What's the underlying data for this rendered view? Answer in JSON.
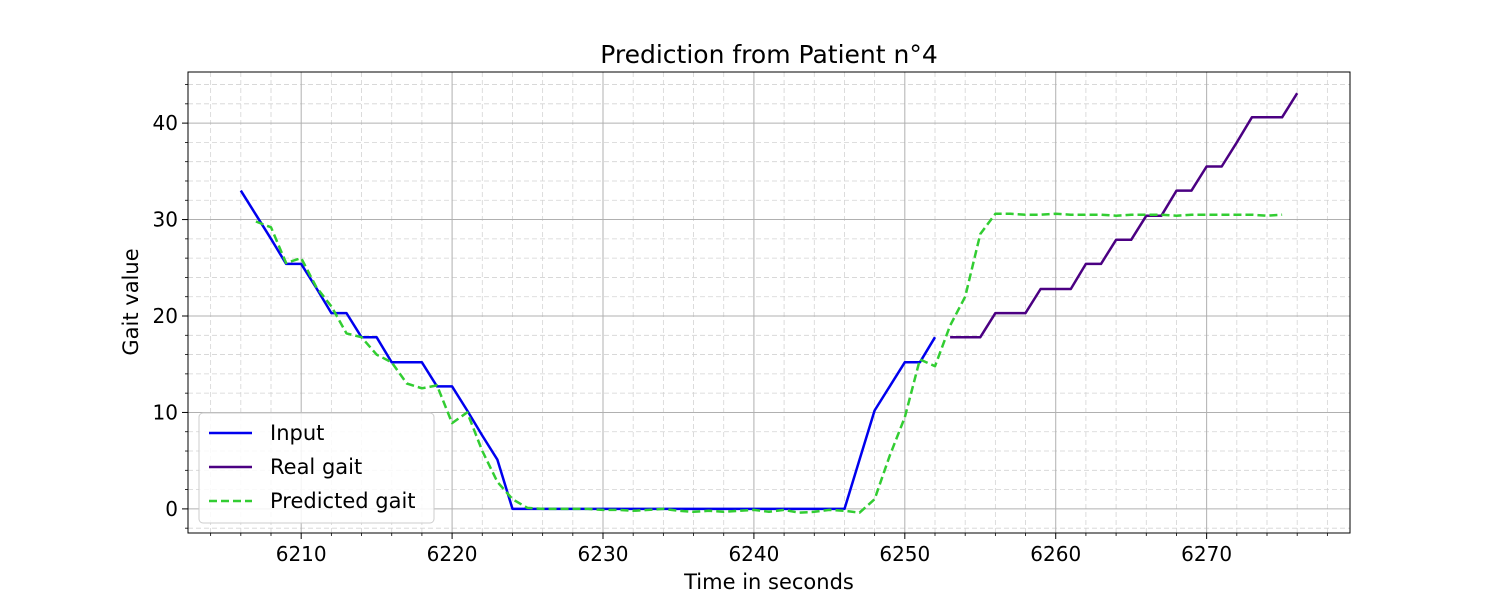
{
  "chart_data": {
    "type": "line",
    "title": "Prediction from Patient n°4",
    "xlabel": "Time in seconds",
    "ylabel": "Gait value",
    "xlim": [
      6202.5,
      6279.5
    ],
    "ylim": [
      -2.5,
      45.3
    ],
    "xticks": [
      6210,
      6220,
      6230,
      6240,
      6250,
      6260,
      6270
    ],
    "yticks": [
      0,
      10,
      20,
      30,
      40
    ],
    "grid": true,
    "minor_grid": true,
    "legend_position": "lower left",
    "series": [
      {
        "name": "Input",
        "color": "#0000ee",
        "dash": "solid",
        "x": [
          6206,
          6207,
          6208,
          6209,
          6210,
          6211,
          6212,
          6213,
          6214,
          6215,
          6216,
          6217,
          6218,
          6219,
          6220,
          6221,
          6222,
          6223,
          6224,
          6225,
          6226,
          6227,
          6228,
          6229,
          6230,
          6231,
          6232,
          6233,
          6234,
          6235,
          6236,
          6237,
          6238,
          6239,
          6240,
          6241,
          6242,
          6243,
          6244,
          6245,
          6246,
          6247,
          6248,
          6249,
          6250,
          6251,
          6252
        ],
        "y": [
          33.0,
          30.5,
          28.0,
          25.4,
          25.4,
          22.9,
          20.3,
          20.3,
          17.8,
          17.8,
          15.2,
          15.2,
          15.2,
          12.7,
          12.7,
          10.2,
          7.6,
          5.1,
          0,
          0,
          0,
          0,
          0,
          0,
          0,
          0,
          0,
          0,
          0,
          0,
          0,
          0,
          0,
          0,
          0,
          0,
          0,
          0,
          0,
          0,
          0,
          5.1,
          10.2,
          12.7,
          15.2,
          15.2,
          17.8
        ]
      },
      {
        "name": "Real gait",
        "color": "#4b0082",
        "dash": "solid",
        "x": [
          6253,
          6254,
          6255,
          6256,
          6257,
          6258,
          6259,
          6260,
          6261,
          6262,
          6263,
          6264,
          6265,
          6266,
          6267,
          6268,
          6269,
          6270,
          6271,
          6272,
          6273,
          6274,
          6275,
          6276
        ],
        "y": [
          17.8,
          17.8,
          17.8,
          20.3,
          20.3,
          20.3,
          22.8,
          22.8,
          22.8,
          25.4,
          25.4,
          27.9,
          27.9,
          30.4,
          30.4,
          33.0,
          33.0,
          35.5,
          35.5,
          38.0,
          40.6,
          40.6,
          40.6,
          43.1
        ]
      },
      {
        "name": "Predicted gait",
        "color": "#32cd32",
        "dash": "dashed",
        "x": [
          6207,
          6208,
          6209,
          6210,
          6211,
          6212,
          6213,
          6214,
          6215,
          6216,
          6217,
          6218,
          6219,
          6220,
          6221,
          6222,
          6223,
          6224,
          6225,
          6226,
          6227,
          6228,
          6229,
          6230,
          6231,
          6232,
          6233,
          6234,
          6235,
          6236,
          6237,
          6238,
          6239,
          6240,
          6241,
          6242,
          6243,
          6244,
          6245,
          6246,
          6247,
          6248,
          6249,
          6250,
          6251,
          6252,
          6253,
          6254,
          6255,
          6256,
          6257,
          6258,
          6259,
          6260,
          6261,
          6262,
          6263,
          6264,
          6265,
          6266,
          6267,
          6268,
          6269,
          6270,
          6271,
          6272,
          6273,
          6274,
          6275
        ],
        "y": [
          29.8,
          29.2,
          25.5,
          26.0,
          23.0,
          21.0,
          18.2,
          17.8,
          16.0,
          15.2,
          13.0,
          12.5,
          12.8,
          8.9,
          10.0,
          6.0,
          2.8,
          1.0,
          0.1,
          0.0,
          0.0,
          0.0,
          0.0,
          -0.1,
          -0.1,
          -0.2,
          -0.1,
          0.0,
          -0.2,
          -0.3,
          -0.2,
          -0.3,
          -0.2,
          -0.1,
          -0.3,
          -0.1,
          -0.4,
          -0.3,
          -0.1,
          -0.2,
          -0.4,
          1.0,
          5.5,
          9.5,
          15.5,
          14.8,
          19.0,
          22.0,
          28.5,
          30.6,
          30.6,
          30.5,
          30.5,
          30.6,
          30.5,
          30.5,
          30.5,
          30.4,
          30.5,
          30.5,
          30.5,
          30.4,
          30.5,
          30.5,
          30.5,
          30.5,
          30.5,
          30.4,
          30.5
        ]
      }
    ]
  }
}
